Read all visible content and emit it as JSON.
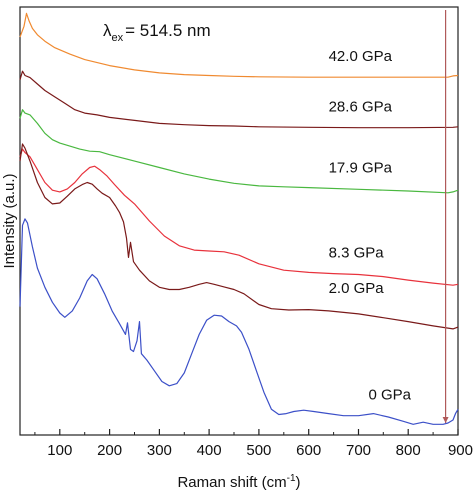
{
  "chart_data": {
    "type": "line",
    "xlabel": "Raman shift (cm",
    "xlabel_sup": "-1",
    "xlabel_end": ")",
    "ylabel": "Intensity (a.u.)",
    "xlim": [
      20,
      900
    ],
    "xticks": [
      100,
      200,
      300,
      400,
      500,
      600,
      700,
      800,
      900
    ],
    "xtick_labels": [
      "100",
      "200",
      "300",
      "400",
      "500",
      "600",
      "700",
      "800",
      "900"
    ],
    "annotation": {
      "lambda": "λ",
      "sub": "ex",
      "value": "= 514.5 nm"
    },
    "marker_x": 875,
    "marker_color": "#b05a5a",
    "series": [
      {
        "name": "42.0 GPa",
        "color": "#f08a30",
        "label_x": 640,
        "points": [
          [
            20,
            0.93
          ],
          [
            28,
            0.955
          ],
          [
            33,
            0.985
          ],
          [
            38,
            0.968
          ],
          [
            45,
            0.95
          ],
          [
            55,
            0.935
          ],
          [
            70,
            0.92
          ],
          [
            90,
            0.905
          ],
          [
            120,
            0.89
          ],
          [
            150,
            0.877
          ],
          [
            200,
            0.863
          ],
          [
            250,
            0.853
          ],
          [
            300,
            0.846
          ],
          [
            350,
            0.842
          ],
          [
            400,
            0.84
          ],
          [
            450,
            0.838
          ],
          [
            500,
            0.837
          ],
          [
            600,
            0.836
          ],
          [
            700,
            0.836
          ],
          [
            800,
            0.836
          ],
          [
            880,
            0.836
          ],
          [
            890,
            0.839
          ],
          [
            900,
            0.84
          ]
        ]
      },
      {
        "name": "28.6 GPa",
        "color": "#7a1a1a",
        "label_x": 640,
        "points": [
          [
            20,
            0.83
          ],
          [
            25,
            0.85
          ],
          [
            30,
            0.84
          ],
          [
            40,
            0.835
          ],
          [
            55,
            0.82
          ],
          [
            70,
            0.805
          ],
          [
            90,
            0.79
          ],
          [
            110,
            0.775
          ],
          [
            130,
            0.76
          ],
          [
            150,
            0.752
          ],
          [
            175,
            0.748
          ],
          [
            200,
            0.742
          ],
          [
            250,
            0.735
          ],
          [
            300,
            0.728
          ],
          [
            350,
            0.725
          ],
          [
            400,
            0.723
          ],
          [
            450,
            0.722
          ],
          [
            500,
            0.72
          ],
          [
            600,
            0.719
          ],
          [
            700,
            0.718
          ],
          [
            800,
            0.718
          ],
          [
            890,
            0.719
          ],
          [
            900,
            0.72
          ]
        ]
      },
      {
        "name": "17.9 GPa",
        "color": "#4ab840",
        "label_x": 640,
        "points": [
          [
            20,
            0.74
          ],
          [
            25,
            0.76
          ],
          [
            30,
            0.752
          ],
          [
            40,
            0.748
          ],
          [
            55,
            0.728
          ],
          [
            70,
            0.705
          ],
          [
            85,
            0.69
          ],
          [
            100,
            0.682
          ],
          [
            120,
            0.675
          ],
          [
            140,
            0.668
          ],
          [
            160,
            0.663
          ],
          [
            180,
            0.662
          ],
          [
            200,
            0.655
          ],
          [
            250,
            0.64
          ],
          [
            300,
            0.625
          ],
          [
            350,
            0.61
          ],
          [
            400,
            0.598
          ],
          [
            450,
            0.588
          ],
          [
            500,
            0.582
          ],
          [
            550,
            0.58
          ],
          [
            600,
            0.578
          ],
          [
            700,
            0.574
          ],
          [
            800,
            0.57
          ],
          [
            880,
            0.566
          ],
          [
            890,
            0.568
          ],
          [
            900,
            0.572
          ]
        ]
      },
      {
        "name": "8.3 GPa",
        "color": "#e8323c",
        "label_x": 640,
        "points": [
          [
            20,
            0.65
          ],
          [
            25,
            0.668
          ],
          [
            30,
            0.66
          ],
          [
            40,
            0.65
          ],
          [
            55,
            0.62
          ],
          [
            70,
            0.59
          ],
          [
            85,
            0.572
          ],
          [
            100,
            0.568
          ],
          [
            115,
            0.575
          ],
          [
            130,
            0.59
          ],
          [
            145,
            0.61
          ],
          [
            160,
            0.625
          ],
          [
            170,
            0.628
          ],
          [
            180,
            0.62
          ],
          [
            195,
            0.605
          ],
          [
            210,
            0.585
          ],
          [
            230,
            0.56
          ],
          [
            250,
            0.54
          ],
          [
            280,
            0.5
          ],
          [
            310,
            0.465
          ],
          [
            340,
            0.442
          ],
          [
            370,
            0.432
          ],
          [
            400,
            0.43
          ],
          [
            430,
            0.428
          ],
          [
            460,
            0.42
          ],
          [
            500,
            0.4
          ],
          [
            550,
            0.385
          ],
          [
            600,
            0.38
          ],
          [
            650,
            0.377
          ],
          [
            700,
            0.375
          ],
          [
            750,
            0.37
          ],
          [
            800,
            0.362
          ],
          [
            850,
            0.355
          ],
          [
            890,
            0.35
          ],
          [
            900,
            0.352
          ]
        ]
      },
      {
        "name": "2.0 GPa",
        "color": "#7a1a1a",
        "label_x": 640,
        "points": [
          [
            20,
            0.64
          ],
          [
            25,
            0.68
          ],
          [
            30,
            0.67
          ],
          [
            40,
            0.64
          ],
          [
            55,
            0.59
          ],
          [
            70,
            0.555
          ],
          [
            85,
            0.54
          ],
          [
            100,
            0.542
          ],
          [
            115,
            0.558
          ],
          [
            130,
            0.575
          ],
          [
            145,
            0.585
          ],
          [
            155,
            0.59
          ],
          [
            165,
            0.586
          ],
          [
            175,
            0.575
          ],
          [
            185,
            0.565
          ],
          [
            200,
            0.555
          ],
          [
            212,
            0.535
          ],
          [
            220,
            0.52
          ],
          [
            228,
            0.498
          ],
          [
            234,
            0.46
          ],
          [
            238,
            0.415
          ],
          [
            242,
            0.45
          ],
          [
            248,
            0.405
          ],
          [
            260,
            0.385
          ],
          [
            280,
            0.36
          ],
          [
            300,
            0.345
          ],
          [
            320,
            0.34
          ],
          [
            340,
            0.34
          ],
          [
            360,
            0.345
          ],
          [
            380,
            0.352
          ],
          [
            395,
            0.356
          ],
          [
            410,
            0.352
          ],
          [
            430,
            0.346
          ],
          [
            450,
            0.34
          ],
          [
            470,
            0.33
          ],
          [
            500,
            0.305
          ],
          [
            525,
            0.295
          ],
          [
            560,
            0.292
          ],
          [
            600,
            0.293
          ],
          [
            640,
            0.29
          ],
          [
            700,
            0.283
          ],
          [
            750,
            0.274
          ],
          [
            800,
            0.265
          ],
          [
            850,
            0.255
          ],
          [
            890,
            0.248
          ],
          [
            900,
            0.252
          ]
        ]
      },
      {
        "name": "0 GPa",
        "color": "#3c50c8",
        "label_x": 700,
        "points": [
          [
            20,
            0.3
          ],
          [
            25,
            0.49
          ],
          [
            30,
            0.505
          ],
          [
            35,
            0.495
          ],
          [
            45,
            0.44
          ],
          [
            55,
            0.39
          ],
          [
            70,
            0.345
          ],
          [
            85,
            0.31
          ],
          [
            100,
            0.285
          ],
          [
            110,
            0.275
          ],
          [
            125,
            0.29
          ],
          [
            140,
            0.32
          ],
          [
            155,
            0.36
          ],
          [
            165,
            0.375
          ],
          [
            175,
            0.365
          ],
          [
            190,
            0.33
          ],
          [
            205,
            0.29
          ],
          [
            220,
            0.26
          ],
          [
            232,
            0.235
          ],
          [
            236,
            0.262
          ],
          [
            242,
            0.2
          ],
          [
            248,
            0.195
          ],
          [
            255,
            0.22
          ],
          [
            260,
            0.265
          ],
          [
            264,
            0.19
          ],
          [
            275,
            0.175
          ],
          [
            290,
            0.15
          ],
          [
            305,
            0.125
          ],
          [
            320,
            0.115
          ],
          [
            335,
            0.12
          ],
          [
            350,
            0.145
          ],
          [
            365,
            0.19
          ],
          [
            380,
            0.235
          ],
          [
            395,
            0.268
          ],
          [
            410,
            0.28
          ],
          [
            425,
            0.278
          ],
          [
            440,
            0.265
          ],
          [
            455,
            0.255
          ],
          [
            465,
            0.24
          ],
          [
            480,
            0.2
          ],
          [
            495,
            0.15
          ],
          [
            510,
            0.1
          ],
          [
            525,
            0.06
          ],
          [
            540,
            0.048
          ],
          [
            555,
            0.05
          ],
          [
            570,
            0.055
          ],
          [
            590,
            0.058
          ],
          [
            610,
            0.055
          ],
          [
            640,
            0.05
          ],
          [
            670,
            0.045
          ],
          [
            700,
            0.045
          ],
          [
            730,
            0.05
          ],
          [
            760,
            0.042
          ],
          [
            790,
            0.032
          ],
          [
            810,
            0.025
          ],
          [
            830,
            0.03
          ],
          [
            850,
            0.025
          ],
          [
            870,
            0.025
          ],
          [
            880,
            0.028
          ],
          [
            890,
            0.035
          ],
          [
            895,
            0.05
          ],
          [
            900,
            0.06
          ]
        ]
      }
    ]
  }
}
